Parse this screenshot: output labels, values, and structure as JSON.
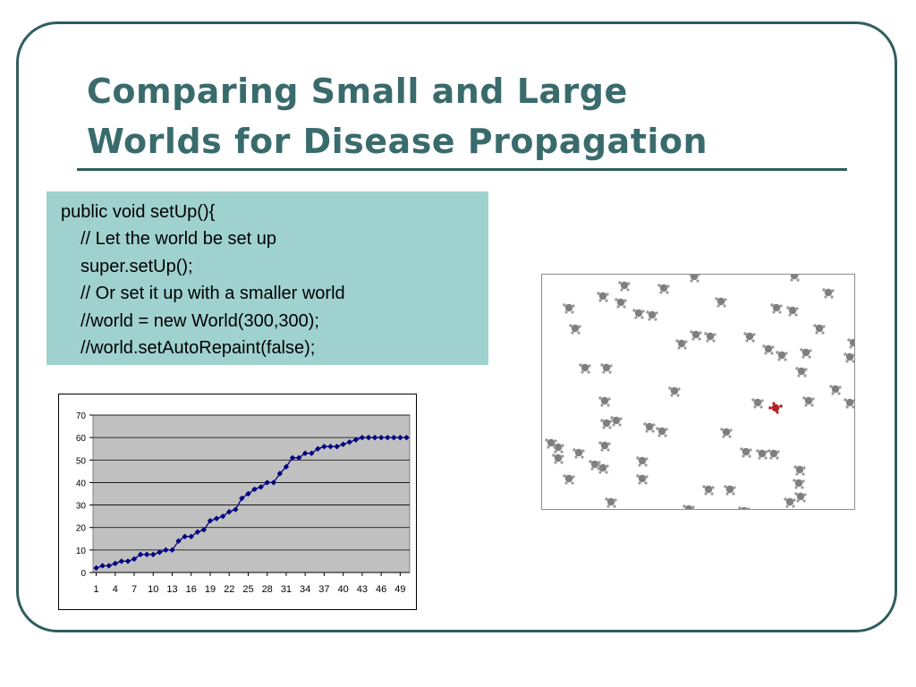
{
  "slide": {
    "title_line1": "Comparing Small and Large",
    "title_line2": "Worlds for Disease Propagation"
  },
  "code": {
    "line1": "public void setUp(){",
    "line2": "// Let the world be set up",
    "line3": "super.setUp();",
    "line4": "// Or set it up with a smaller world",
    "line5": "//world = new World(300,300);",
    "line6": "//world.setAutoRepaint(false);"
  },
  "colors": {
    "title": "#3a6b6c",
    "frame": "#2f5d5f",
    "code_background": "#9fd1cf",
    "plot_background": "#c0c0c0",
    "series": "#000080",
    "healthy_turtle": "#808080",
    "sick_turtle": "#b22222"
  },
  "chart_data": {
    "type": "line",
    "x": [
      1,
      2,
      3,
      4,
      5,
      6,
      7,
      8,
      9,
      10,
      11,
      12,
      13,
      14,
      15,
      16,
      17,
      18,
      19,
      20,
      21,
      22,
      23,
      24,
      25,
      26,
      27,
      28,
      29,
      30,
      31,
      32,
      33,
      34,
      35,
      36,
      37,
      38,
      39,
      40,
      41,
      42,
      43,
      44,
      45,
      46,
      47,
      48,
      49,
      50
    ],
    "series": [
      {
        "values": [
          2,
          3,
          3,
          4,
          5,
          5,
          6,
          8,
          8,
          8,
          9,
          10,
          10,
          14,
          16,
          16,
          18,
          19,
          23,
          24,
          25,
          27,
          28,
          33,
          35,
          37,
          38,
          40,
          40,
          44,
          47,
          51,
          51,
          53,
          53,
          55,
          56,
          56,
          56,
          57,
          58,
          59,
          60,
          60,
          60,
          60,
          60,
          60,
          60,
          60
        ]
      }
    ],
    "x_tick_labels": [
      "1",
      "4",
      "7",
      "10",
      "13",
      "16",
      "19",
      "22",
      "25",
      "28",
      "31",
      "34",
      "37",
      "40",
      "43",
      "46",
      "49"
    ],
    "y_tick_labels": [
      "0",
      "10",
      "20",
      "30",
      "40",
      "50",
      "60",
      "70"
    ],
    "ylim": [
      0,
      70
    ],
    "grid": true,
    "legend": "none",
    "marker": "diamond"
  },
  "world": {
    "icon": "turtle-icon",
    "healthy_count": 60,
    "sick_count": 1
  }
}
